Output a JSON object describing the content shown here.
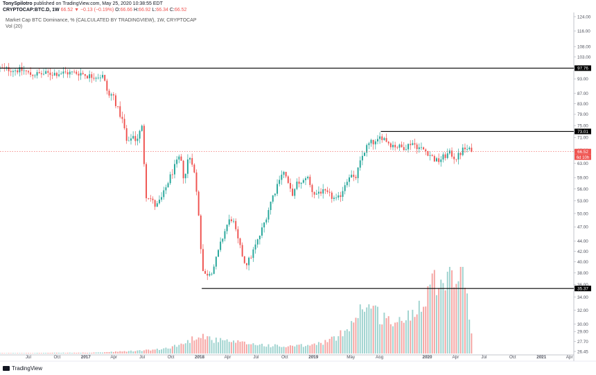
{
  "header": {
    "author": "TonySpilotro",
    "published": " published on TradingView.com, May 25, 2020 10:38:55 EDT",
    "symbol": "CRYPTOCAP:BTC.D, 1W",
    "change": "66.52 ▼ −0.13 (−0.19%)",
    "o_label": "O:",
    "o": "66.66",
    "h_label": "H:",
    "h": "66.92",
    "l_label": "L:",
    "l": "66.34",
    "c_label": "C:",
    "c": "66.52"
  },
  "legend": {
    "title": "Market Cap BTC Dominance, % (CALCULATED BY TRADINGVIEW), 1W, CRYPTOCAP",
    "volume": "Vol (20)"
  },
  "footer": {
    "brand": "TradingView"
  },
  "colors": {
    "up": "#26a69a",
    "down": "#ef5350",
    "vol_up": "#9fd3cf",
    "vol_down": "#f5a5a3",
    "level": "#000000"
  },
  "chart_data": {
    "type": "candlestick",
    "y_axis": {
      "scale": "log",
      "range": [
        26.2,
        124
      ],
      "ticks": [
        124.0,
        116.0,
        108.0,
        103.0,
        97.76,
        93.0,
        87.0,
        83.0,
        79.0,
        75.0,
        71.0,
        67.0,
        63.0,
        59.0,
        56.0,
        53.0,
        50.0,
        47.0,
        44.0,
        42.0,
        40.0,
        38.0,
        36.0,
        34.0,
        32.0,
        30.0,
        29.0,
        27.7,
        26.45
      ]
    },
    "x_axis": {
      "start": "2016-04-01",
      "ticks": [
        {
          "label": "Jul",
          "date": "2016-07-01"
        },
        {
          "label": "Oct",
          "date": "2016-10-01"
        },
        {
          "label": "2017",
          "date": "2017-01-01"
        },
        {
          "label": "Apr",
          "date": "2017-04-01"
        },
        {
          "label": "Jul",
          "date": "2017-07-01"
        },
        {
          "label": "Oct",
          "date": "2017-10-01"
        },
        {
          "label": "2018",
          "date": "2018-01-01"
        },
        {
          "label": "Apr",
          "date": "2018-04-01"
        },
        {
          "label": "Jul",
          "date": "2018-07-01"
        },
        {
          "label": "Oct",
          "date": "2018-10-01"
        },
        {
          "label": "2019",
          "date": "2019-01-01"
        },
        {
          "label": "May",
          "date": "2019-05-01"
        },
        {
          "label": "Aug",
          "date": "2019-08-01"
        },
        {
          "label": "2020",
          "date": "2020-01-01"
        },
        {
          "label": "Apr",
          "date": "2020-04-01"
        },
        {
          "label": "Jul",
          "date": "2020-07-01"
        },
        {
          "label": "Oct",
          "date": "2020-10-01"
        },
        {
          "label": "2021",
          "date": "2021-01-01"
        },
        {
          "label": "Apr",
          "date": "2021-04-01"
        }
      ],
      "end": "2021-04-15"
    },
    "last_price": {
      "value": 66.52,
      "countdown": "6d 10h"
    },
    "levels": [
      {
        "value": 97.76,
        "label": "97.76",
        "from": "2016-04-01"
      },
      {
        "value": 73.01,
        "label": "73.01",
        "from": "2019-08-05"
      },
      {
        "value": 35.37,
        "label": "35.37",
        "from": "2018-01-08"
      }
    ],
    "path": [
      [
        "2016-04-01",
        97.6
      ],
      [
        "2016-06-20",
        96.6
      ],
      [
        "2016-07-04",
        95.0
      ],
      [
        "2016-08-15",
        95.2
      ],
      [
        "2016-11-01",
        95.7
      ],
      [
        "2016-12-15",
        95.6
      ],
      [
        "2017-01-09",
        94.3
      ],
      [
        "2017-02-27",
        94.2
      ],
      [
        "2017-03-06",
        89.5
      ],
      [
        "2017-03-20",
        85.0
      ],
      [
        "2017-03-27",
        87.5
      ],
      [
        "2017-04-10",
        82.0
      ],
      [
        "2017-05-01",
        76.0
      ],
      [
        "2017-05-15",
        68.0
      ],
      [
        "2017-05-29",
        72.0
      ],
      [
        "2017-06-12",
        70.0
      ],
      [
        "2017-06-26",
        73.5
      ],
      [
        "2017-07-03",
        75.0
      ],
      [
        "2017-07-10",
        54.5
      ],
      [
        "2017-07-24",
        54.0
      ],
      [
        "2017-08-14",
        51.5
      ],
      [
        "2017-09-04",
        54.0
      ],
      [
        "2017-09-25",
        58.5
      ],
      [
        "2017-10-16",
        62.5
      ],
      [
        "2017-10-30",
        65.0
      ],
      [
        "2017-11-13",
        58.0
      ],
      [
        "2017-11-27",
        65.5
      ],
      [
        "2017-12-11",
        63.0
      ],
      [
        "2017-12-25",
        53.0
      ],
      [
        "2018-01-01",
        47.5
      ],
      [
        "2018-01-08",
        39.5
      ],
      [
        "2018-01-15",
        37.5
      ],
      [
        "2018-01-29",
        38.0
      ],
      [
        "2018-02-12",
        38.5
      ],
      [
        "2018-02-26",
        41.0
      ],
      [
        "2018-03-12",
        44.0
      ],
      [
        "2018-04-02",
        48.0
      ],
      [
        "2018-04-16",
        49.0
      ],
      [
        "2018-04-30",
        45.0
      ],
      [
        "2018-05-14",
        42.0
      ],
      [
        "2018-05-28",
        39.5
      ],
      [
        "2018-06-11",
        40.5
      ],
      [
        "2018-06-25",
        42.5
      ],
      [
        "2018-07-09",
        44.5
      ],
      [
        "2018-07-23",
        47.0
      ],
      [
        "2018-08-06",
        50.0
      ],
      [
        "2018-08-20",
        53.5
      ],
      [
        "2018-09-03",
        56.0
      ],
      [
        "2018-09-17",
        60.0
      ],
      [
        "2018-10-01",
        60.5
      ],
      [
        "2018-10-15",
        56.0
      ],
      [
        "2018-10-29",
        54.5
      ],
      [
        "2018-11-12",
        58.0
      ],
      [
        "2018-11-26",
        57.0
      ],
      [
        "2018-12-10",
        60.0
      ],
      [
        "2018-12-24",
        56.0
      ],
      [
        "2019-01-07",
        54.5
      ],
      [
        "2019-01-21",
        55.5
      ],
      [
        "2019-02-04",
        55.0
      ],
      [
        "2019-02-18",
        54.5
      ],
      [
        "2019-03-04",
        53.8
      ],
      [
        "2019-03-18",
        53.0
      ],
      [
        "2019-04-01",
        55.0
      ],
      [
        "2019-04-15",
        58.0
      ],
      [
        "2019-04-29",
        60.0
      ],
      [
        "2019-05-13",
        58.0
      ],
      [
        "2019-05-27",
        62.0
      ],
      [
        "2019-06-10",
        66.0
      ],
      [
        "2019-06-24",
        68.5
      ],
      [
        "2019-07-08",
        69.5
      ],
      [
        "2019-07-22",
        69.0
      ],
      [
        "2019-08-05",
        71.5
      ],
      [
        "2019-08-19",
        70.5
      ],
      [
        "2019-09-02",
        69.0
      ],
      [
        "2019-09-16",
        68.5
      ],
      [
        "2019-09-30",
        68.0
      ],
      [
        "2019-10-14",
        67.8
      ],
      [
        "2019-10-28",
        68.2
      ],
      [
        "2019-11-11",
        69.5
      ],
      [
        "2019-11-25",
        68.5
      ],
      [
        "2019-12-09",
        67.5
      ],
      [
        "2019-12-23",
        67.0
      ],
      [
        "2020-01-06",
        66.0
      ],
      [
        "2020-01-20",
        64.5
      ],
      [
        "2020-02-03",
        63.5
      ],
      [
        "2020-02-17",
        64.5
      ],
      [
        "2020-03-02",
        65.5
      ],
      [
        "2020-03-16",
        66.0
      ],
      [
        "2020-03-30",
        64.5
      ],
      [
        "2020-04-13",
        65.5
      ],
      [
        "2020-04-27",
        67.5
      ],
      [
        "2020-05-11",
        67.0
      ],
      [
        "2020-05-25",
        66.52
      ]
    ],
    "volume_profile": [
      [
        "2016-04-01",
        0.005
      ],
      [
        "2017-02-01",
        0.01
      ],
      [
        "2017-06-01",
        0.03
      ],
      [
        "2017-09-01",
        0.05
      ],
      [
        "2017-11-15",
        0.12
      ],
      [
        "2018-01-01",
        0.23
      ],
      [
        "2018-02-15",
        0.16
      ],
      [
        "2018-05-01",
        0.13
      ],
      [
        "2018-07-01",
        0.11
      ],
      [
        "2018-10-01",
        0.08
      ],
      [
        "2019-01-01",
        0.1
      ],
      [
        "2019-03-15",
        0.18
      ],
      [
        "2019-05-01",
        0.35
      ],
      [
        "2019-06-15",
        0.6
      ],
      [
        "2019-08-01",
        0.45
      ],
      [
        "2019-10-01",
        0.35
      ],
      [
        "2019-12-01",
        0.55
      ],
      [
        "2020-01-15",
        0.85
      ],
      [
        "2020-03-01",
        0.95
      ],
      [
        "2020-04-01",
        0.9
      ],
      [
        "2020-05-01",
        1.0
      ],
      [
        "2020-05-25",
        0.1
      ]
    ]
  }
}
